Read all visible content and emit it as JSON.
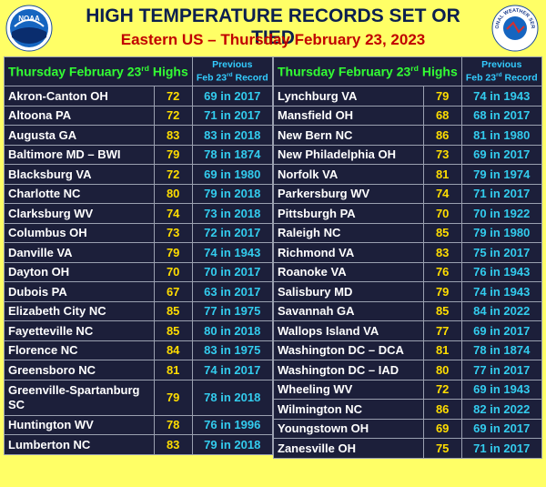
{
  "header": {
    "title": "HIGH TEMPERATURE RECORDS SET OR TIED",
    "subtitle": "Eastern US – Thursday February 23, 2023",
    "noaa_logo": "NOAA",
    "nws_logo": "NATIONAL WEATHER SERVICE"
  },
  "columns": {
    "highs": {
      "before": "Thursday February 23",
      "sup": "rd",
      "after": " Highs"
    },
    "record": {
      "line1": "Previous",
      "before": "Feb 23",
      "sup": "rd",
      "after": " Record"
    }
  },
  "tables": [
    {
      "rows": [
        [
          "Akron-Canton OH",
          72,
          "69 in 2017"
        ],
        [
          "Altoona PA",
          72,
          "71 in 2017"
        ],
        [
          "Augusta GA",
          83,
          "83 in 2018"
        ],
        [
          "Baltimore MD – BWI",
          79,
          "78 in 1874"
        ],
        [
          "Blacksburg VA",
          72,
          "69 in 1980"
        ],
        [
          "Charlotte NC",
          80,
          "79 in 2018"
        ],
        [
          "Clarksburg WV",
          74,
          "73 in 2018"
        ],
        [
          "Columbus OH",
          73,
          "72 in 2017"
        ],
        [
          "Danville VA",
          79,
          "74 in 1943"
        ],
        [
          "Dayton OH",
          70,
          "70 in 2017"
        ],
        [
          "Dubois PA",
          67,
          "63 in 2017"
        ],
        [
          "Elizabeth City NC",
          85,
          "77 in 1975"
        ],
        [
          "Fayetteville NC",
          85,
          "80 in 2018"
        ],
        [
          "Florence NC",
          84,
          "83 in 1975"
        ],
        [
          "Greensboro NC",
          81,
          "74 in 2017"
        ],
        [
          "Greenville-Spartanburg SC",
          79,
          "78 in 2018"
        ],
        [
          "Huntington WV",
          78,
          "76 in 1996"
        ],
        [
          "Lumberton NC",
          83,
          "79 in 2018"
        ]
      ]
    },
    {
      "rows": [
        [
          "Lynchburg VA",
          79,
          "74 in 1943"
        ],
        [
          "Mansfield OH",
          68,
          "68 in 2017"
        ],
        [
          "New Bern NC",
          86,
          "81 in 1980"
        ],
        [
          "New Philadelphia OH",
          73,
          "69 in 2017"
        ],
        [
          "Norfolk VA",
          81,
          "79 in 1974"
        ],
        [
          "Parkersburg WV",
          74,
          "71 in 2017"
        ],
        [
          "Pittsburgh PA",
          70,
          "70 in 1922"
        ],
        [
          "Raleigh NC",
          85,
          "79 in 1980"
        ],
        [
          "Richmond VA",
          83,
          "75 in 2017"
        ],
        [
          "Roanoke VA",
          76,
          "76 in 1943"
        ],
        [
          "Salisbury MD",
          79,
          "74 in 1943"
        ],
        [
          "Savannah GA",
          85,
          "84 in 2022"
        ],
        [
          "Wallops Island VA",
          77,
          "69 in 2017"
        ],
        [
          "Washington DC – DCA",
          81,
          "78 in 1874"
        ],
        [
          "Washington DC – IAD",
          80,
          "77 in 2017"
        ],
        [
          "Wheeling WV",
          72,
          "69 in 1943"
        ],
        [
          "Wilmington NC",
          86,
          "82 in 2022"
        ],
        [
          "Youngstown OH",
          69,
          "69 in 2017"
        ],
        [
          "Zanesville OH",
          75,
          "71 in 2017"
        ]
      ]
    }
  ]
}
